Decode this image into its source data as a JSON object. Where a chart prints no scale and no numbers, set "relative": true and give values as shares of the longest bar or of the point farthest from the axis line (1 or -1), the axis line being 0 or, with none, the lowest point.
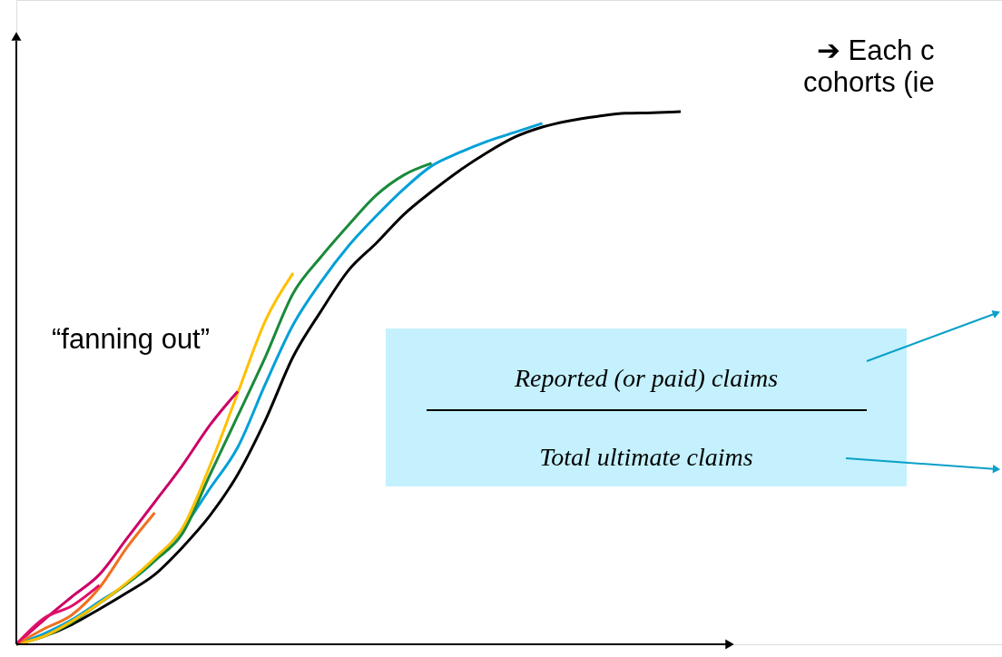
{
  "chart_data": {
    "type": "line",
    "relative": true,
    "grid": false,
    "tick_labels": false,
    "categories": [
      null,
      null,
      null,
      null,
      null,
      null,
      null,
      null,
      null,
      null,
      null,
      null,
      null,
      null,
      null,
      null,
      null,
      null,
      null,
      null,
      null,
      null,
      null,
      null,
      null
    ],
    "series": [
      {
        "color": "#000000",
        "values": [
          0,
          0.015,
          0.037,
          0.066,
          0.097,
          0.131,
          0.182,
          0.242,
          0.319,
          0.421,
          0.54,
          0.625,
          0.702,
          0.753,
          0.807,
          0.85,
          0.889,
          0.923,
          0.952,
          0.971,
          0.983,
          0.991,
          0.997,
          0.998,
          1
        ]
      },
      {
        "color": "#00a0d8",
        "values": [
          0,
          0.02,
          0.046,
          0.08,
          0.114,
          0.157,
          0.216,
          0.293,
          0.37,
          0.489,
          0.6,
          0.68,
          0.748,
          0.804,
          0.855,
          0.898,
          0.923,
          0.944,
          0.961,
          0.978,
          null,
          null,
          null,
          null,
          null
        ]
      },
      {
        "color": "#1a8a3a",
        "values": [
          0,
          0.015,
          0.041,
          0.077,
          0.114,
          0.157,
          0.208,
          0.319,
          0.429,
          0.54,
          0.659,
          0.727,
          0.787,
          0.843,
          0.881,
          0.903,
          null,
          null,
          null,
          null,
          null,
          null,
          null,
          null,
          null
        ]
      },
      {
        "color": "#ffc000",
        "values": [
          0,
          0.015,
          0.043,
          0.077,
          0.116,
          0.162,
          0.218,
          0.336,
          0.472,
          0.608,
          0.697,
          null,
          null,
          null,
          null,
          null,
          null,
          null,
          null,
          null,
          null,
          null,
          null,
          null,
          null
        ]
      },
      {
        "color": "#cc0066",
        "values": [
          0,
          0.046,
          0.089,
          0.131,
          0.199,
          0.267,
          0.336,
          0.412,
          0.475,
          null,
          null,
          null,
          null,
          null,
          null,
          null,
          null,
          null,
          null,
          null,
          null,
          null,
          null,
          null,
          null
        ]
      },
      {
        "color": "#f07020",
        "values": [
          0,
          0.029,
          0.055,
          0.106,
          0.182,
          0.247,
          null,
          null,
          null,
          null,
          null,
          null,
          null,
          null,
          null,
          null,
          null,
          null,
          null,
          null,
          null,
          null,
          null,
          null,
          null
        ]
      },
      {
        "color": "#e0106a",
        "values": [
          0,
          0.049,
          0.072,
          0.111,
          null,
          null,
          null,
          null,
          null,
          null,
          null,
          null,
          null,
          null,
          null,
          null,
          null,
          null,
          null,
          null,
          null,
          null,
          null,
          null,
          null
        ]
      }
    ],
    "annotations": [
      "➔ Each c",
      "cohorts (ie",
      "“fanning out”",
      "Reported (or paid) claims",
      "Total ultimate claims"
    ]
  }
}
